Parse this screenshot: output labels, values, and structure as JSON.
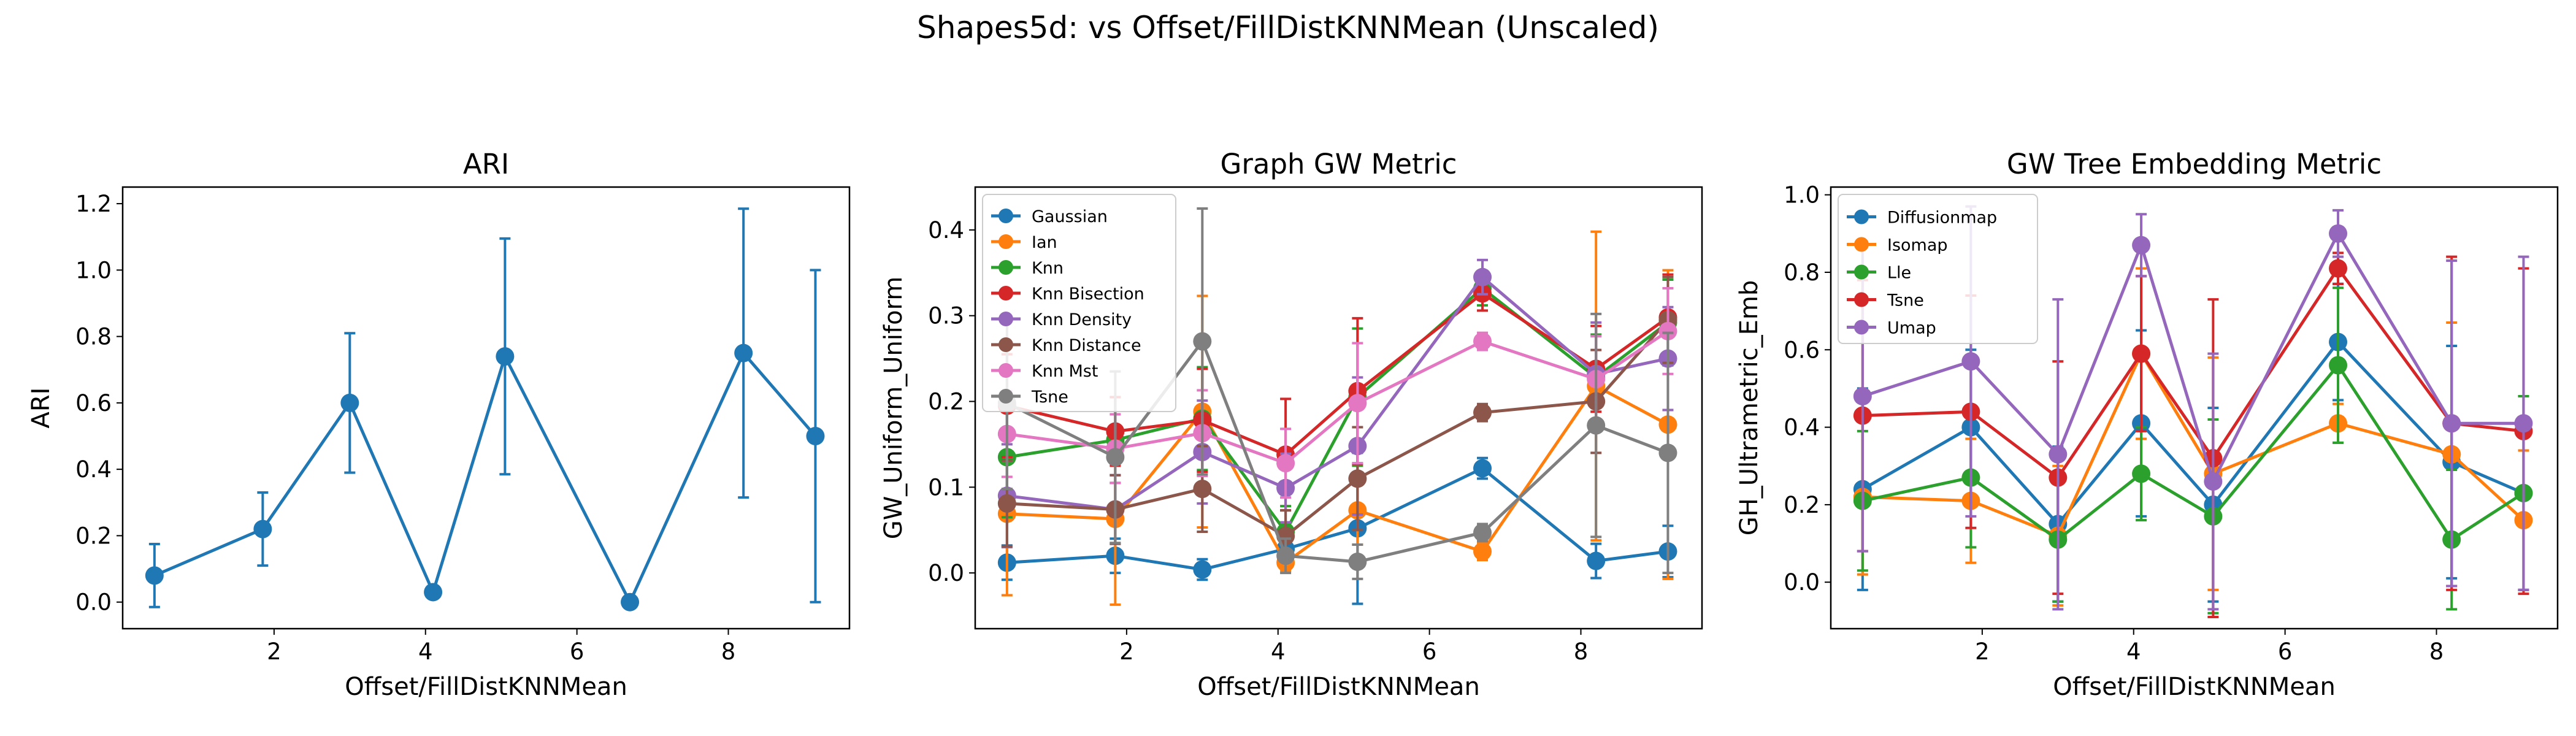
{
  "figure": {
    "title": "Shapes5d: vs Offset/FillDistKNNMean (Unscaled)"
  },
  "chart_data": [
    {
      "type": "line",
      "title": "ARI",
      "xlabel": "Offset/FillDistKNNMean",
      "ylabel": "ARI",
      "xlim": [
        0.0,
        9.6
      ],
      "ylim": [
        -0.08,
        1.25
      ],
      "xticks": [
        2,
        4,
        6,
        8
      ],
      "yticks": [
        0.0,
        0.2,
        0.4,
        0.6,
        0.8,
        1.0,
        1.2
      ],
      "grid": false,
      "legend": null,
      "series": [
        {
          "color": "#1f77b4",
          "x": [
            0.42,
            1.85,
            3.0,
            4.1,
            5.05,
            6.7,
            8.2,
            9.15
          ],
          "y": [
            0.08,
            0.22,
            0.6,
            0.03,
            0.74,
            0.0,
            0.75,
            0.5
          ],
          "err": [
            0.095,
            0.11,
            0.21,
            0.0,
            0.355,
            0.0,
            0.435,
            0.5
          ]
        }
      ]
    },
    {
      "type": "line",
      "title": "Graph GW Metric",
      "xlabel": "Offset/FillDistKNNMean",
      "ylabel": "GW_Uniform_Uniform",
      "xlim": [
        0.0,
        9.6
      ],
      "ylim": [
        -0.065,
        0.45
      ],
      "xticks": [
        2,
        4,
        6,
        8
      ],
      "yticks": [
        0.0,
        0.1,
        0.2,
        0.3,
        0.4
      ],
      "grid": false,
      "legend": "top-left",
      "series": [
        {
          "name": "Gaussian",
          "color": "#1f77b4",
          "x": [
            0.42,
            1.85,
            3.0,
            4.1,
            5.05,
            6.7,
            8.2,
            9.15
          ],
          "y": [
            0.012,
            0.02,
            0.004,
            0.028,
            0.052,
            0.122,
            0.014,
            0.025
          ],
          "err": [
            0.02,
            0.02,
            0.012,
            0.02,
            0.088,
            0.012,
            0.02,
            0.03
          ]
        },
        {
          "name": "Ian",
          "color": "#ff7f0e",
          "x": [
            0.42,
            1.85,
            3.0,
            4.1,
            5.05,
            6.7,
            8.2,
            9.15
          ],
          "y": [
            0.069,
            0.063,
            0.188,
            0.012,
            0.073,
            0.025,
            0.218,
            0.173
          ],
          "err": [
            0.095,
            0.1,
            0.135,
            0.01,
            0.04,
            0.01,
            0.18,
            0.18
          ]
        },
        {
          "name": "Knn",
          "color": "#2ca02c",
          "x": [
            0.42,
            1.85,
            3.0,
            4.1,
            5.05,
            6.7,
            8.2,
            9.15
          ],
          "y": [
            0.135,
            0.155,
            0.18,
            0.048,
            0.205,
            0.332,
            0.228,
            0.292
          ],
          "err": [
            0.07,
            0.05,
            0.06,
            0.03,
            0.08,
            0.02,
            0.05,
            0.05
          ]
        },
        {
          "name": "Knn Bisection",
          "color": "#d62728",
          "x": [
            0.42,
            1.85,
            3.0,
            4.1,
            5.05,
            6.7,
            8.2,
            9.15
          ],
          "y": [
            0.195,
            0.165,
            0.178,
            0.138,
            0.212,
            0.326,
            0.238,
            0.298
          ],
          "err": [
            0.06,
            0.04,
            0.06,
            0.065,
            0.085,
            0.02,
            0.05,
            0.05
          ]
        },
        {
          "name": "Knn Density",
          "color": "#9467bd",
          "x": [
            0.42,
            1.85,
            3.0,
            4.1,
            5.05,
            6.7,
            8.2,
            9.15
          ],
          "y": [
            0.09,
            0.074,
            0.141,
            0.099,
            0.148,
            0.345,
            0.232,
            0.25
          ],
          "err": [
            0.06,
            0.04,
            0.06,
            0.04,
            0.08,
            0.02,
            0.06,
            0.06
          ]
        },
        {
          "name": "Knn Distance",
          "color": "#8c564b",
          "x": [
            0.42,
            1.85,
            3.0,
            4.1,
            5.05,
            6.7,
            8.2,
            9.15
          ],
          "y": [
            0.081,
            0.074,
            0.098,
            0.043,
            0.11,
            0.187,
            0.2,
            0.295
          ],
          "err": [
            0.05,
            0.04,
            0.05,
            0.03,
            0.06,
            0.01,
            0.06,
            0.05
          ]
        },
        {
          "name": "Knn Mst",
          "color": "#e377c2",
          "x": [
            0.42,
            1.85,
            3.0,
            4.1,
            5.05,
            6.7,
            8.2,
            9.15
          ],
          "y": [
            0.162,
            0.145,
            0.163,
            0.128,
            0.198,
            0.27,
            0.226,
            0.282
          ],
          "err": [
            0.05,
            0.04,
            0.05,
            0.04,
            0.07,
            0.01,
            0.05,
            0.05
          ]
        },
        {
          "name": "Tsne",
          "color": "#7f7f7f",
          "x": [
            0.42,
            1.85,
            3.0,
            4.1,
            5.05,
            6.7,
            8.2,
            9.15
          ],
          "y": [
            0.198,
            0.135,
            0.27,
            0.02,
            0.013,
            0.047,
            0.172,
            0.14
          ],
          "err": [
            0.1,
            0.1,
            0.155,
            0.02,
            0.02,
            0.01,
            0.13,
            0.14
          ]
        }
      ]
    },
    {
      "type": "line",
      "title": "GW Tree Embedding Metric",
      "xlabel": "Offset/FillDistKNNMean",
      "ylabel": "GH_Ultrametric_Emb",
      "xlim": [
        0.0,
        9.6
      ],
      "ylim": [
        -0.12,
        1.02
      ],
      "xticks": [
        2,
        4,
        6,
        8
      ],
      "yticks": [
        0.0,
        0.2,
        0.4,
        0.6,
        0.8,
        1.0
      ],
      "grid": false,
      "legend": "top-left",
      "series": [
        {
          "name": "Diffusionmap",
          "color": "#1f77b4",
          "x": [
            0.42,
            1.85,
            3.0,
            4.1,
            5.05,
            6.7,
            8.2,
            9.15
          ],
          "y": [
            0.24,
            0.4,
            0.15,
            0.41,
            0.2,
            0.62,
            0.31,
            0.23
          ],
          "err": [
            0.26,
            0.2,
            0.2,
            0.24,
            0.25,
            0.15,
            0.3,
            0.25
          ]
        },
        {
          "name": "Isomap",
          "color": "#ff7f0e",
          "x": [
            0.42,
            1.85,
            3.0,
            4.1,
            5.05,
            6.7,
            8.2,
            9.15
          ],
          "y": [
            0.22,
            0.21,
            0.12,
            0.59,
            0.28,
            0.41,
            0.33,
            0.16
          ],
          "err": [
            0.2,
            0.16,
            0.18,
            0.22,
            0.3,
            0.05,
            0.34,
            0.18
          ]
        },
        {
          "name": "Lle",
          "color": "#2ca02c",
          "x": [
            0.42,
            1.85,
            3.0,
            4.1,
            5.05,
            6.7,
            8.2,
            9.15
          ],
          "y": [
            0.21,
            0.27,
            0.11,
            0.28,
            0.17,
            0.56,
            0.11,
            0.23
          ],
          "err": [
            0.18,
            0.18,
            0.16,
            0.12,
            0.25,
            0.2,
            0.18,
            0.25
          ]
        },
        {
          "name": "Tsne",
          "color": "#d62728",
          "x": [
            0.42,
            1.85,
            3.0,
            4.1,
            5.05,
            6.7,
            8.2,
            9.15
          ],
          "y": [
            0.43,
            0.44,
            0.27,
            0.59,
            0.32,
            0.81,
            0.41,
            0.39
          ],
          "err": [
            0.35,
            0.3,
            0.3,
            0.2,
            0.41,
            0.04,
            0.43,
            0.42
          ]
        },
        {
          "name": "Umap",
          "color": "#9467bd",
          "x": [
            0.42,
            1.85,
            3.0,
            4.1,
            5.05,
            6.7,
            8.2,
            9.15
          ],
          "y": [
            0.48,
            0.57,
            0.33,
            0.87,
            0.26,
            0.9,
            0.41,
            0.41
          ],
          "err": [
            0.4,
            0.4,
            0.4,
            0.08,
            0.33,
            0.06,
            0.42,
            0.43
          ]
        }
      ]
    }
  ]
}
